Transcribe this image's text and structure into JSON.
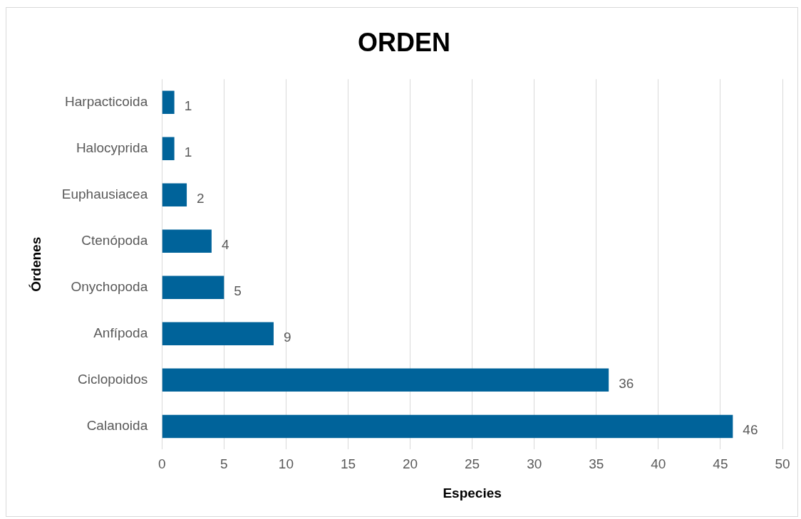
{
  "chart_data": {
    "type": "bar",
    "orientation": "horizontal",
    "title": "ORDEN",
    "xlabel": "Especies",
    "ylabel": "Órdenes",
    "categories": [
      "Harpacticoida",
      "Halocyprida",
      "Euphausiacea",
      "Ctenópoda",
      "Onychopoda",
      "Anfípoda",
      "Ciclopoidos",
      "Calanoida"
    ],
    "values": [
      1,
      1,
      2,
      4,
      5,
      9,
      36,
      46
    ],
    "color": "#00639a",
    "xlim": [
      0,
      50
    ],
    "xticks": [
      0,
      5,
      10,
      15,
      20,
      25,
      30,
      35,
      40,
      45,
      50
    ],
    "grid": "x",
    "legend": false,
    "data_labels": true
  }
}
